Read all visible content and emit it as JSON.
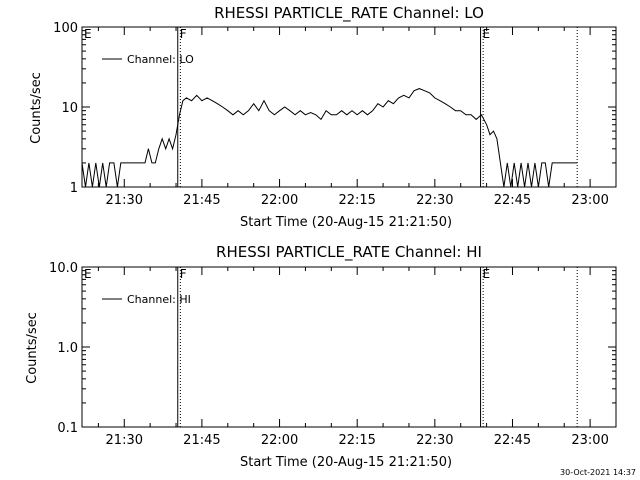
{
  "footer_timestamp": "30-Oct-2021 14:37",
  "chart_data": [
    {
      "type": "line",
      "title": "RHESSI PARTICLE_RATE Channel: LO",
      "xlabel": "Start Time (20-Aug-15 21:21:50)",
      "ylabel": "Counts/sec",
      "yscale": "log",
      "ylim": [
        1,
        100
      ],
      "xlim": [
        "21:21:50",
        "23:05:00"
      ],
      "y_tick_labels": [
        "1",
        "10",
        "100"
      ],
      "x_tick_labels": [
        "21:30",
        "21:45",
        "22:00",
        "22:15",
        "22:30",
        "22:45",
        "23:00"
      ],
      "legend": {
        "entries": [
          "Channel: LO"
        ],
        "position": "top-left"
      },
      "markers": [
        {
          "label": "E",
          "time": "21:21:50",
          "style": "dotted"
        },
        {
          "label": "F",
          "time": "21:40:20",
          "style": "solid"
        },
        {
          "label": "",
          "time": "21:40:50",
          "style": "dotted"
        },
        {
          "label": "E",
          "time": "22:38:50",
          "style": "solid"
        },
        {
          "label": "",
          "time": "22:39:20",
          "style": "dotted"
        },
        {
          "label": "",
          "time": "22:57:30",
          "style": "dotted"
        }
      ],
      "series": [
        {
          "name": "Channel: LO",
          "points": [
            [
              "21:21:50",
              2
            ],
            [
              "21:22:30",
              1
            ],
            [
              "21:23:10",
              2
            ],
            [
              "21:23:50",
              1
            ],
            [
              "21:24:30",
              2
            ],
            [
              "21:25:10",
              1
            ],
            [
              "21:25:50",
              2
            ],
            [
              "21:26:30",
              1
            ],
            [
              "21:27:10",
              2
            ],
            [
              "21:28:00",
              2
            ],
            [
              "21:28:40",
              1
            ],
            [
              "21:29:20",
              2
            ],
            [
              "21:30:00",
              2
            ],
            [
              "21:31:00",
              2
            ],
            [
              "21:32:00",
              2
            ],
            [
              "21:33:00",
              2
            ],
            [
              "21:34:00",
              2
            ],
            [
              "21:34:40",
              3
            ],
            [
              "21:35:20",
              2
            ],
            [
              "21:36:00",
              2
            ],
            [
              "21:36:40",
              3
            ],
            [
              "21:37:20",
              4
            ],
            [
              "21:38:00",
              3
            ],
            [
              "21:38:40",
              4
            ],
            [
              "21:39:20",
              3
            ],
            [
              "21:40:00",
              4.5
            ],
            [
              "21:40:40",
              8
            ],
            [
              "21:41:20",
              12
            ],
            [
              "21:42:00",
              13
            ],
            [
              "21:43:00",
              12
            ],
            [
              "21:44:00",
              14
            ],
            [
              "21:45:00",
              12
            ],
            [
              "21:46:00",
              13
            ],
            [
              "21:47:00",
              12
            ],
            [
              "21:48:00",
              11
            ],
            [
              "21:49:00",
              10
            ],
            [
              "21:50:00",
              9
            ],
            [
              "21:51:00",
              8
            ],
            [
              "21:52:00",
              9
            ],
            [
              "21:53:00",
              8
            ],
            [
              "21:54:00",
              9
            ],
            [
              "21:55:00",
              11
            ],
            [
              "21:56:00",
              9
            ],
            [
              "21:57:00",
              12
            ],
            [
              "21:58:00",
              9
            ],
            [
              "21:59:00",
              8
            ],
            [
              "22:00:00",
              9
            ],
            [
              "22:01:00",
              10
            ],
            [
              "22:02:00",
              9
            ],
            [
              "22:03:00",
              8
            ],
            [
              "22:04:00",
              9
            ],
            [
              "22:05:00",
              8
            ],
            [
              "22:06:00",
              8.5
            ],
            [
              "22:07:00",
              8
            ],
            [
              "22:08:00",
              7
            ],
            [
              "22:09:00",
              9
            ],
            [
              "22:10:00",
              8
            ],
            [
              "22:11:00",
              8
            ],
            [
              "22:12:00",
              9
            ],
            [
              "22:13:00",
              8
            ],
            [
              "22:14:00",
              9
            ],
            [
              "22:15:00",
              8
            ],
            [
              "22:16:00",
              9
            ],
            [
              "22:17:00",
              8
            ],
            [
              "22:18:00",
              9
            ],
            [
              "22:19:00",
              11
            ],
            [
              "22:20:00",
              10
            ],
            [
              "22:21:00",
              12
            ],
            [
              "22:22:00",
              11
            ],
            [
              "22:23:00",
              13
            ],
            [
              "22:24:00",
              14
            ],
            [
              "22:25:00",
              13
            ],
            [
              "22:26:00",
              16
            ],
            [
              "22:27:00",
              17
            ],
            [
              "22:28:00",
              16
            ],
            [
              "22:29:00",
              15
            ],
            [
              "22:30:00",
              13
            ],
            [
              "22:31:00",
              12
            ],
            [
              "22:32:00",
              11
            ],
            [
              "22:33:00",
              10
            ],
            [
              "22:34:00",
              9
            ],
            [
              "22:35:00",
              9
            ],
            [
              "22:36:00",
              8
            ],
            [
              "22:37:00",
              8
            ],
            [
              "22:38:00",
              7
            ],
            [
              "22:39:00",
              8
            ],
            [
              "22:40:00",
              6
            ],
            [
              "22:40:40",
              4.5
            ],
            [
              "22:41:20",
              5
            ],
            [
              "22:42:00",
              4
            ],
            [
              "22:42:40",
              2
            ],
            [
              "22:43:20",
              1
            ],
            [
              "22:44:00",
              2
            ],
            [
              "22:44:40",
              1
            ],
            [
              "22:45:20",
              2
            ],
            [
              "22:46:00",
              1
            ],
            [
              "22:46:40",
              2
            ],
            [
              "22:47:20",
              1
            ],
            [
              "22:48:00",
              2
            ],
            [
              "22:48:40",
              1
            ],
            [
              "22:49:20",
              2
            ],
            [
              "22:50:00",
              1
            ],
            [
              "22:50:40",
              2
            ],
            [
              "22:51:20",
              2
            ],
            [
              "22:52:00",
              1
            ],
            [
              "22:52:40",
              2
            ],
            [
              "22:53:20",
              2
            ],
            [
              "22:54:00",
              2
            ],
            [
              "22:55:00",
              2
            ],
            [
              "22:56:00",
              2
            ],
            [
              "22:57:00",
              2
            ],
            [
              "22:57:30",
              2
            ]
          ]
        }
      ]
    },
    {
      "type": "line",
      "title": "RHESSI PARTICLE_RATE Channel: HI",
      "xlabel": "Start Time (20-Aug-15 21:21:50)",
      "ylabel": "Counts/sec",
      "yscale": "log",
      "ylim": [
        0.1,
        10
      ],
      "xlim": [
        "21:21:50",
        "23:05:00"
      ],
      "y_tick_labels": [
        "0.1",
        "1.0",
        "10.0"
      ],
      "x_tick_labels": [
        "21:30",
        "21:45",
        "22:00",
        "22:15",
        "22:30",
        "22:45",
        "23:00"
      ],
      "legend": {
        "entries": [
          "Channel: HI"
        ],
        "position": "top-left"
      },
      "markers": [
        {
          "label": "E",
          "time": "21:21:50",
          "style": "dotted"
        },
        {
          "label": "F",
          "time": "21:40:20",
          "style": "solid"
        },
        {
          "label": "",
          "time": "21:40:50",
          "style": "dotted"
        },
        {
          "label": "E",
          "time": "22:38:50",
          "style": "solid"
        },
        {
          "label": "",
          "time": "22:39:20",
          "style": "dotted"
        },
        {
          "label": "",
          "time": "22:57:30",
          "style": "dotted"
        }
      ],
      "series": [
        {
          "name": "Channel: HI",
          "points": []
        }
      ]
    }
  ]
}
